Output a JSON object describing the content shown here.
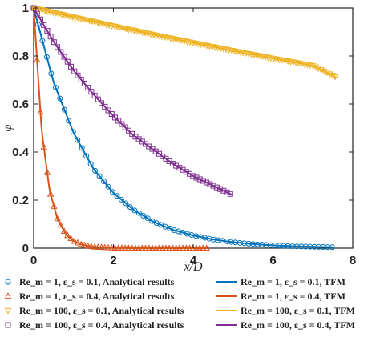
{
  "chart_data": {
    "type": "line",
    "title": "",
    "xlabel": "x/D",
    "ylabel": "φ",
    "xlim": [
      0,
      8
    ],
    "ylim": [
      0,
      1
    ],
    "x_ticks": [
      "0",
      "2",
      "4",
      "6",
      "8"
    ],
    "y_ticks": [
      "0",
      "0.2",
      "0.4",
      "0.6",
      "0.8",
      "1"
    ],
    "grid": false,
    "legend_position": "bottom",
    "series": [
      {
        "name": "Re_m = 1, ε_s = 0.1, Analytical results",
        "kind": "markers",
        "marker": "circle",
        "color": "#0072BD",
        "x": [
          0,
          0.5,
          1,
          1.5,
          2,
          2.5,
          3,
          3.5,
          4,
          4.5,
          5,
          5.5,
          6,
          6.5,
          7,
          7.5
        ],
        "y": [
          1,
          0.69,
          0.48,
          0.33,
          0.23,
          0.16,
          0.11,
          0.076,
          0.053,
          0.036,
          0.025,
          0.017,
          0.012,
          0.008,
          0.006,
          0.004
        ]
      },
      {
        "name": "Re_m = 1, ε_s = 0.4, Analytical results",
        "kind": "markers",
        "marker": "triangle-up",
        "color": "#D95319",
        "x": [
          0,
          0.2,
          0.4,
          0.6,
          0.8,
          1,
          1.2,
          1.5,
          2,
          2.5,
          3,
          3.5,
          4,
          4.35
        ],
        "y": [
          1,
          0.49,
          0.24,
          0.12,
          0.06,
          0.03,
          0.015,
          0.005,
          0.001,
          0,
          0,
          0,
          0,
          0
        ]
      },
      {
        "name": "Re_m = 100, ε_s = 0.1, Analytical results",
        "kind": "markers",
        "marker": "triangle-down",
        "color": "#EDB120",
        "x": [
          0,
          1,
          2,
          3,
          4,
          5,
          6,
          7,
          7.6
        ],
        "y": [
          1,
          0.962,
          0.925,
          0.889,
          0.855,
          0.822,
          0.79,
          0.76,
          0.71
        ]
      },
      {
        "name": "Re_m = 100, ε_s = 0.4, Analytical results",
        "kind": "markers",
        "marker": "square",
        "color": "#7E2F8E",
        "x": [
          0,
          0.5,
          1,
          1.5,
          2,
          2.5,
          3,
          3.5,
          4,
          4.5,
          5
        ],
        "y": [
          1,
          0.86,
          0.74,
          0.64,
          0.55,
          0.47,
          0.41,
          0.35,
          0.3,
          0.26,
          0.22
        ]
      },
      {
        "name": "Re_m = 1, ε_s = 0.1, TFM",
        "kind": "line",
        "color": "#0072BD",
        "x": [
          0,
          0.5,
          1,
          1.5,
          2,
          2.5,
          3,
          3.5,
          4,
          4.5,
          5,
          5.5,
          6,
          6.5,
          7,
          7.5
        ],
        "y": [
          1,
          0.69,
          0.48,
          0.33,
          0.23,
          0.16,
          0.11,
          0.076,
          0.053,
          0.036,
          0.025,
          0.017,
          0.012,
          0.008,
          0.006,
          0.004
        ]
      },
      {
        "name": "Re_m = 1, ε_s = 0.4, TFM",
        "kind": "line",
        "color": "#D95319",
        "x": [
          0,
          0.2,
          0.4,
          0.6,
          0.8,
          1,
          1.2,
          1.5,
          2,
          2.5,
          3,
          3.5,
          4,
          4.35
        ],
        "y": [
          1,
          0.49,
          0.24,
          0.12,
          0.06,
          0.03,
          0.015,
          0.005,
          0.001,
          0,
          0,
          0,
          0,
          0
        ]
      },
      {
        "name": "Re_m = 100, ε_s = 0.1, TFM",
        "kind": "line",
        "color": "#EDB120",
        "x": [
          0,
          1,
          2,
          3,
          4,
          5,
          6,
          7,
          7.6
        ],
        "y": [
          1,
          0.962,
          0.925,
          0.889,
          0.855,
          0.822,
          0.79,
          0.76,
          0.71
        ]
      },
      {
        "name": "Re_m = 100, ε_s = 0.4, TFM",
        "kind": "line",
        "color": "#7E2F8E",
        "x": [
          0,
          0.5,
          1,
          1.5,
          2,
          2.5,
          3,
          3.5,
          4,
          4.5,
          5
        ],
        "y": [
          1,
          0.86,
          0.74,
          0.64,
          0.55,
          0.47,
          0.41,
          0.35,
          0.3,
          0.26,
          0.22
        ]
      }
    ]
  }
}
